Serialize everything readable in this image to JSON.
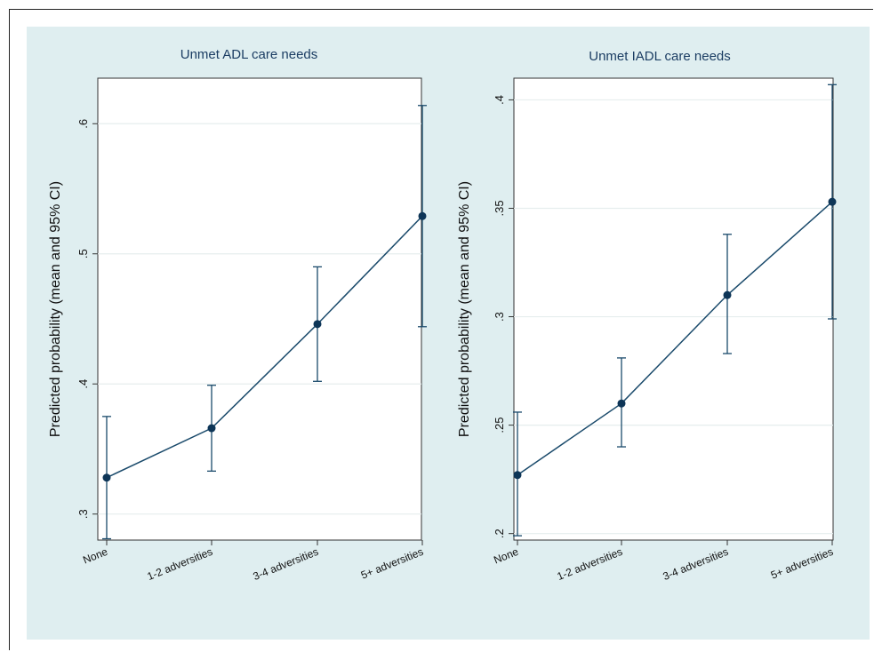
{
  "chart_data": [
    {
      "type": "line",
      "title": "Unmet ADL care needs",
      "ylabel": "Predicted probability (mean and 95% CI)",
      "xlabel": "",
      "categories": [
        "None",
        "1-2 adversities",
        "3-4 adversities",
        "5+ adversities"
      ],
      "series": [
        {
          "values": [
            0.328,
            0.366,
            0.446,
            0.529
          ],
          "ci_low": [
            0.281,
            0.333,
            0.402,
            0.444
          ],
          "ci_high": [
            0.375,
            0.399,
            0.49,
            0.614
          ]
        }
      ],
      "ylim": [
        0.28,
        0.635
      ],
      "yticks": [
        0.3,
        0.4,
        0.5,
        0.6
      ],
      "ytick_labels": [
        ".3",
        ".4",
        ".5",
        ".6"
      ],
      "grid": true,
      "colors": {
        "line": "#1a4a6b",
        "marker": "#0d3557"
      }
    },
    {
      "type": "line",
      "title": "Unmet IADL care needs",
      "ylabel": "Predicted probability (mean and 95% CI)",
      "xlabel": "",
      "categories": [
        "None",
        "1-2 adversities",
        "3-4 adversities",
        "5+ adversities"
      ],
      "series": [
        {
          "values": [
            0.227,
            0.26,
            0.31,
            0.353
          ],
          "ci_low": [
            0.199,
            0.24,
            0.283,
            0.299
          ],
          "ci_high": [
            0.256,
            0.281,
            0.338,
            0.407
          ]
        }
      ],
      "ylim": [
        0.197,
        0.41
      ],
      "yticks": [
        0.2,
        0.25,
        0.3,
        0.35,
        0.4
      ],
      "ytick_labels": [
        ".2",
        ".25",
        ".3",
        ".35",
        ".4"
      ],
      "grid": true,
      "colors": {
        "line": "#1a4a6b",
        "marker": "#0d3557"
      }
    }
  ]
}
